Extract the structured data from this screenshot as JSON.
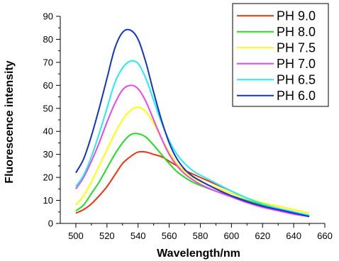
{
  "chart_data": {
    "type": "line",
    "title": "",
    "xlabel": "Wavelength/nm",
    "ylabel": "Fluorescence intensity",
    "xlim": [
      490,
      660
    ],
    "ylim": [
      0,
      90
    ],
    "xticks": [
      500,
      520,
      540,
      560,
      580,
      600,
      620,
      640,
      660
    ],
    "yticks": [
      0,
      10,
      20,
      30,
      40,
      50,
      60,
      70,
      80,
      90
    ],
    "grid": false,
    "legend_position": "top-right",
    "x": [
      500,
      505,
      510,
      515,
      520,
      525,
      530,
      535,
      540,
      545,
      550,
      555,
      560,
      565,
      570,
      575,
      580,
      590,
      600,
      610,
      620,
      630,
      640,
      650
    ],
    "series": [
      {
        "name": "PH 9.0",
        "color": "#ee3311",
        "values": [
          4.5,
          6,
          8.5,
          12,
          16,
          21,
          26,
          29,
          31,
          31,
          30,
          29,
          27,
          25,
          23,
          21.5,
          20,
          17,
          14,
          11,
          8.5,
          6.5,
          5,
          3.5
        ]
      },
      {
        "name": "PH 8.0",
        "color": "#22dd22",
        "values": [
          5.5,
          8,
          13,
          18,
          24,
          30,
          35,
          38.5,
          39,
          37.5,
          34,
          30,
          26,
          22.5,
          20,
          18,
          16.5,
          14,
          12,
          10,
          8,
          6.5,
          5,
          3.5
        ]
      },
      {
        "name": "PH 7.5",
        "color": "#ffff00",
        "values": [
          8,
          12,
          18,
          25,
          32,
          39,
          45,
          49,
          50.5,
          48.5,
          43.5,
          37,
          31,
          26,
          22.5,
          20,
          18,
          15.5,
          13,
          11,
          9,
          7.5,
          6,
          4.5
        ]
      },
      {
        "name": "PH 7.0",
        "color": "#ee44ee",
        "values": [
          15,
          20,
          27,
          35,
          44,
          52,
          58,
          60,
          58.5,
          53,
          45,
          37,
          30,
          25,
          21.5,
          19,
          17,
          14,
          11.5,
          9,
          7,
          5.5,
          4,
          3
        ]
      },
      {
        "name": "PH 6.5",
        "color": "#22eeee",
        "values": [
          16,
          21,
          29,
          39,
          50,
          61,
          67.5,
          70.5,
          69.5,
          63,
          53.5,
          44,
          36,
          30,
          26,
          23,
          21,
          17.5,
          14,
          11,
          8.5,
          6.5,
          5,
          3.5
        ]
      },
      {
        "name": "PH 6.0",
        "color": "#1133cc",
        "values": [
          22,
          28,
          38,
          50,
          63,
          76,
          83,
          84,
          80,
          70,
          57,
          45,
          35,
          28,
          23.5,
          20.5,
          18.5,
          15,
          12,
          9.5,
          7.5,
          6,
          4.5,
          3
        ]
      }
    ]
  }
}
